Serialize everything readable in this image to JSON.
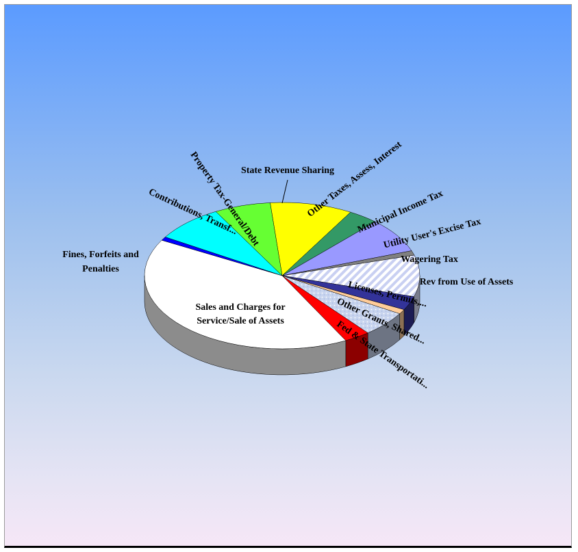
{
  "chart_data": {
    "type": "pie",
    "title": "",
    "slices": [
      {
        "label": "State Revenue Sharing",
        "value": 9.5,
        "color": "#ffff00"
      },
      {
        "label": "Other Taxes, Assess, Interest",
        "value": 3.5,
        "color": "#339966"
      },
      {
        "label": "Municipal Income Tax",
        "value": 7.5,
        "color": "#9999ff"
      },
      {
        "label": "Utility User's Excise Tax",
        "value": 1.0,
        "color": "#808080"
      },
      {
        "label": "Wagering Tax",
        "value": 9.0,
        "color": "#dde4ff",
        "pattern": "diagonal-hatch"
      },
      {
        "label": "Rev from Use of Assets",
        "value": 3.0,
        "color": "#333399"
      },
      {
        "label": "Licenses, Permits,...",
        "value": 1.0,
        "color": "#ffcc99"
      },
      {
        "label": "Other Grants, Shared...",
        "value": 5.5,
        "color": "#c6d2ee",
        "pattern": "speckle"
      },
      {
        "label": "Fed & State Transportati...",
        "value": 3.0,
        "color": "#ff0000"
      },
      {
        "label": "Sales and Charges for Service/Sale of Assets",
        "value": 40.0,
        "color": "#ffffff"
      },
      {
        "label": "Fines, Forfeits and Penalties",
        "value": 0.8,
        "color": "#0000ff"
      },
      {
        "label": "Contributions, Transf...",
        "value": 8.0,
        "color": "#00ffff"
      },
      {
        "label": "Property Tax-General/Debt",
        "value": 6.5,
        "color": "#66ff33"
      }
    ],
    "label_lines": [
      {
        "line1": "State Revenue Sharing",
        "line2": "",
        "leader": true
      },
      {
        "line1": "Other Taxes, Assess, Interest",
        "line2": "",
        "leader": false
      },
      {
        "line1": "Municipal Income Tax",
        "line2": "",
        "leader": false
      },
      {
        "line1": "Utility User's Excise Tax",
        "line2": "",
        "leader": false
      },
      {
        "line1": "Wagering Tax",
        "line2": "",
        "leader": false
      },
      {
        "line1": "Rev from Use of Assets",
        "line2": "",
        "leader": false
      },
      {
        "line1": "Licenses, Permits,...",
        "line2": "",
        "leader": false
      },
      {
        "line1": "Other Grants, Shared...",
        "line2": "",
        "leader": false
      },
      {
        "line1": "Fed & State Transportati...",
        "line2": "",
        "leader": false
      },
      {
        "line1": "Sales and Charges for",
        "line2": "Service/Sale of Assets",
        "leader": false
      },
      {
        "line1": "Fines, Forfeits and",
        "line2": "Penalties",
        "leader": false
      },
      {
        "line1": "Contributions, Transf...",
        "line2": "",
        "leader": false
      },
      {
        "line1": "Property Tax-General/Debt",
        "line2": "",
        "leader": false
      }
    ],
    "legend": "none"
  }
}
